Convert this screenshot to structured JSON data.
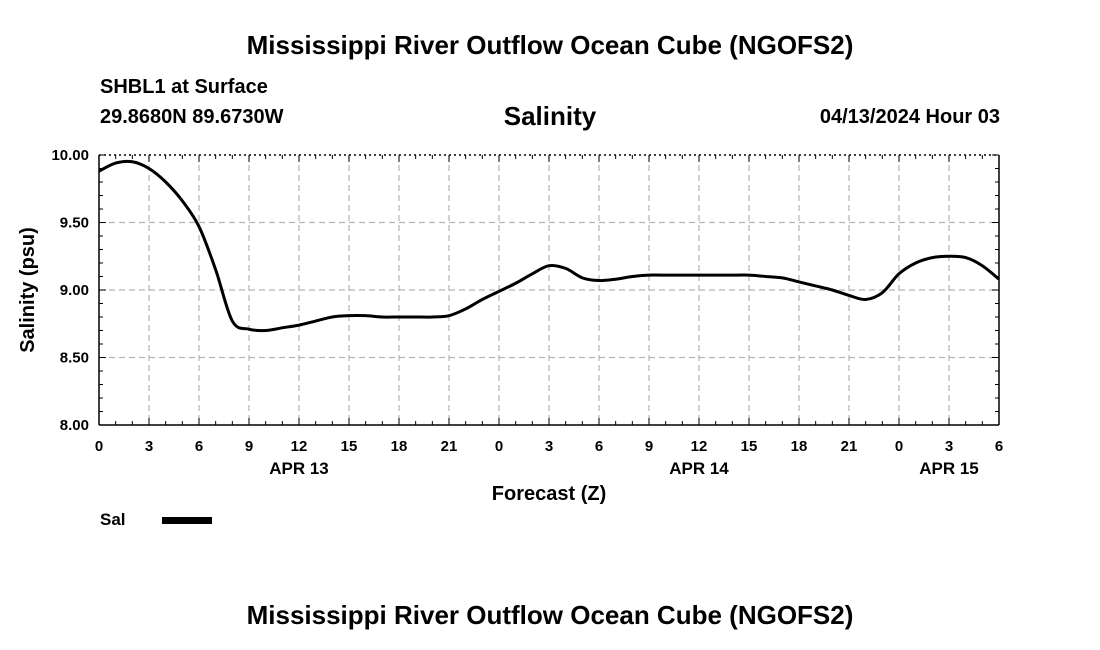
{
  "header": {
    "title": "Mississippi River Outflow Ocean Cube (NGOFS2)",
    "station": "SHBL1 at Surface",
    "coords": "29.8680N  89.6730W",
    "plot_title": "Salinity",
    "datetime": "04/13/2024 Hour 03"
  },
  "footer": {
    "title": "Mississippi River Outflow Ocean Cube (NGOFS2)"
  },
  "legend": {
    "label": "Sal",
    "color": "#000000"
  },
  "chart_data": {
    "type": "line",
    "title": "Salinity",
    "xlabel": "Forecast (Z)",
    "ylabel": "Salinity (psu)",
    "xlim": [
      0,
      54
    ],
    "ylim": [
      8.0,
      10.0
    ],
    "grid": true,
    "y_ticks": [
      8.0,
      8.5,
      9.0,
      9.5,
      10.0
    ],
    "y_tick_labels": [
      "8.00",
      "8.50",
      "9.00",
      "9.50",
      "10.00"
    ],
    "x_ticks": [
      0,
      3,
      6,
      9,
      12,
      15,
      18,
      21,
      24,
      27,
      30,
      33,
      36,
      39,
      42,
      45,
      48,
      51,
      54
    ],
    "x_tick_labels": [
      "0",
      "3",
      "6",
      "9",
      "12",
      "15",
      "18",
      "21",
      "0",
      "3",
      "6",
      "9",
      "12",
      "15",
      "18",
      "21",
      "0",
      "3",
      "6"
    ],
    "day_labels": [
      {
        "label": "APR 13",
        "x": 12
      },
      {
        "label": "APR 14",
        "x": 36
      },
      {
        "label": "APR 15",
        "x": 51
      }
    ],
    "series": [
      {
        "name": "Sal",
        "x": [
          0,
          1,
          2,
          3,
          4,
          5,
          6,
          7,
          8,
          9,
          10,
          11,
          12,
          13,
          14,
          15,
          16,
          17,
          18,
          19,
          20,
          21,
          22,
          23,
          24,
          25,
          26,
          27,
          28,
          29,
          30,
          31,
          32,
          33,
          34,
          35,
          36,
          37,
          38,
          39,
          40,
          41,
          42,
          43,
          44,
          45,
          46,
          47,
          48,
          49,
          50,
          51,
          52,
          53,
          54
        ],
        "values": [
          9.88,
          9.94,
          9.95,
          9.9,
          9.8,
          9.66,
          9.47,
          9.15,
          8.77,
          8.71,
          8.7,
          8.72,
          8.74,
          8.77,
          8.8,
          8.81,
          8.81,
          8.8,
          8.8,
          8.8,
          8.8,
          8.81,
          8.86,
          8.93,
          8.99,
          9.05,
          9.12,
          9.18,
          9.16,
          9.09,
          9.07,
          9.08,
          9.1,
          9.11,
          9.11,
          9.11,
          9.11,
          9.11,
          9.11,
          9.11,
          9.1,
          9.09,
          9.06,
          9.03,
          9.0,
          8.96,
          8.93,
          8.98,
          9.12,
          9.2,
          9.24,
          9.25,
          9.24,
          9.18,
          9.08
        ]
      }
    ]
  }
}
